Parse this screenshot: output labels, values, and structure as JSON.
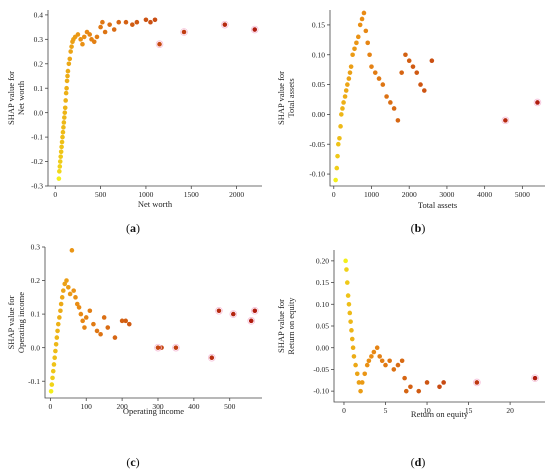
{
  "chart_data": [
    {
      "panel": "(a)",
      "type": "scatter",
      "xlabel": "Net worth",
      "ylabel_lines": [
        "SHAP value for",
        "Net worth"
      ],
      "xlim": [
        -80,
        2280
      ],
      "ylim": [
        -0.3,
        0.42
      ],
      "xticks": [
        0,
        500,
        1000,
        1500,
        2000
      ],
      "yticks": [
        -0.3,
        -0.2,
        -0.1,
        0.0,
        0.1,
        0.2,
        0.3,
        0.4
      ],
      "ytick_labels": [
        "-0.3",
        "-0.2",
        "-0.1",
        "0.0",
        "0.1",
        "0.2",
        "0.3",
        "0.4"
      ],
      "color_scale": {
        "low": "#f3ef1a",
        "mid": "#e98b14",
        "high": "#b01c10"
      },
      "points": [
        [
          40,
          -0.27
        ],
        [
          45,
          -0.24
        ],
        [
          50,
          -0.22
        ],
        [
          55,
          -0.2
        ],
        [
          60,
          -0.18
        ],
        [
          65,
          -0.16
        ],
        [
          70,
          -0.14
        ],
        [
          75,
          -0.12
        ],
        [
          80,
          -0.1
        ],
        [
          85,
          -0.08
        ],
        [
          90,
          -0.06
        ],
        [
          95,
          -0.04
        ],
        [
          100,
          -0.02
        ],
        [
          105,
          0.0
        ],
        [
          110,
          0.02
        ],
        [
          115,
          0.05
        ],
        [
          120,
          0.08
        ],
        [
          125,
          0.1
        ],
        [
          130,
          0.13
        ],
        [
          135,
          0.15
        ],
        [
          140,
          0.17
        ],
        [
          150,
          0.2
        ],
        [
          160,
          0.22
        ],
        [
          170,
          0.25
        ],
        [
          180,
          0.27
        ],
        [
          190,
          0.29
        ],
        [
          200,
          0.3
        ],
        [
          220,
          0.31
        ],
        [
          250,
          0.32
        ],
        [
          280,
          0.3
        ],
        [
          300,
          0.28
        ],
        [
          320,
          0.31
        ],
        [
          350,
          0.33
        ],
        [
          380,
          0.32
        ],
        [
          400,
          0.3
        ],
        [
          430,
          0.29
        ],
        [
          460,
          0.31
        ],
        [
          500,
          0.35
        ],
        [
          520,
          0.37
        ],
        [
          550,
          0.33
        ],
        [
          600,
          0.36
        ],
        [
          650,
          0.34
        ],
        [
          700,
          0.37
        ],
        [
          780,
          0.37
        ],
        [
          850,
          0.36
        ],
        [
          900,
          0.37
        ],
        [
          1000,
          0.38
        ],
        [
          1050,
          0.37
        ],
        [
          1100,
          0.38
        ],
        [
          1150,
          0.28
        ],
        [
          1420,
          0.33
        ],
        [
          1870,
          0.36
        ],
        [
          2200,
          0.34
        ]
      ],
      "annotations": [
        [
          1150,
          0.28
        ],
        [
          1420,
          0.33
        ],
        [
          1870,
          0.36
        ],
        [
          2200,
          0.34
        ]
      ]
    },
    {
      "panel": "(b)",
      "type": "scatter",
      "xlabel": "Total assets",
      "ylabel_lines": [
        "SHAP value for",
        "Total assets"
      ],
      "xlim": [
        -100,
        5600
      ],
      "ylim": [
        -0.12,
        0.175
      ],
      "xticks": [
        0,
        1000,
        2000,
        3000,
        4000,
        5000
      ],
      "yticks": [
        -0.1,
        -0.05,
        0.0,
        0.05,
        0.1,
        0.15
      ],
      "ytick_labels": [
        "-0.10",
        "-0.05",
        "0.00",
        "0.05",
        "0.10",
        "0.15"
      ],
      "color_scale": {
        "low": "#f3ef1a",
        "mid": "#e98b14",
        "high": "#b01c10"
      },
      "points": [
        [
          50,
          -0.11
        ],
        [
          80,
          -0.09
        ],
        [
          100,
          -0.07
        ],
        [
          120,
          -0.05
        ],
        [
          150,
          -0.04
        ],
        [
          180,
          -0.02
        ],
        [
          200,
          0.0
        ],
        [
          230,
          0.01
        ],
        [
          260,
          0.02
        ],
        [
          300,
          0.03
        ],
        [
          330,
          0.04
        ],
        [
          360,
          0.05
        ],
        [
          400,
          0.06
        ],
        [
          430,
          0.07
        ],
        [
          460,
          0.08
        ],
        [
          500,
          0.1
        ],
        [
          550,
          0.11
        ],
        [
          600,
          0.12
        ],
        [
          650,
          0.13
        ],
        [
          700,
          0.15
        ],
        [
          750,
          0.16
        ],
        [
          800,
          0.17
        ],
        [
          850,
          0.14
        ],
        [
          900,
          0.12
        ],
        [
          950,
          0.1
        ],
        [
          1000,
          0.08
        ],
        [
          1100,
          0.07
        ],
        [
          1200,
          0.06
        ],
        [
          1300,
          0.05
        ],
        [
          1400,
          0.03
        ],
        [
          1500,
          0.02
        ],
        [
          1600,
          0.01
        ],
        [
          1700,
          -0.01
        ],
        [
          1800,
          0.07
        ],
        [
          1900,
          0.1
        ],
        [
          2000,
          0.09
        ],
        [
          2100,
          0.08
        ],
        [
          2200,
          0.07
        ],
        [
          2300,
          0.05
        ],
        [
          2400,
          0.04
        ],
        [
          2600,
          0.09
        ],
        [
          4550,
          -0.01
        ],
        [
          5400,
          0.02
        ]
      ],
      "annotations": [
        [
          4550,
          -0.01
        ],
        [
          5400,
          0.02
        ]
      ]
    },
    {
      "panel": "(c)",
      "type": "scatter",
      "xlabel": "Operating income",
      "ylabel_lines": [
        "SHAP value for",
        "Operating income"
      ],
      "xlim": [
        -15,
        590
      ],
      "ylim": [
        -0.15,
        0.3
      ],
      "xticks": [
        0,
        100,
        200,
        300,
        400,
        500
      ],
      "yticks": [
        -0.1,
        0.0,
        0.1,
        0.2,
        0.3
      ],
      "ytick_labels": [
        "-0.1",
        "0.0",
        "0.1",
        "0.2",
        "0.3"
      ],
      "color_scale": {
        "low": "#f3ef1a",
        "mid": "#e98b14",
        "high": "#b01c10"
      },
      "points": [
        [
          2,
          -0.13
        ],
        [
          4,
          -0.11
        ],
        [
          6,
          -0.09
        ],
        [
          8,
          -0.07
        ],
        [
          10,
          -0.05
        ],
        [
          12,
          -0.03
        ],
        [
          14,
          -0.01
        ],
        [
          16,
          0.01
        ],
        [
          18,
          0.03
        ],
        [
          20,
          0.05
        ],
        [
          22,
          0.07
        ],
        [
          25,
          0.09
        ],
        [
          28,
          0.11
        ],
        [
          30,
          0.13
        ],
        [
          33,
          0.15
        ],
        [
          36,
          0.17
        ],
        [
          40,
          0.19
        ],
        [
          45,
          0.2
        ],
        [
          50,
          0.18
        ],
        [
          55,
          0.16
        ],
        [
          60,
          0.29
        ],
        [
          65,
          0.17
        ],
        [
          70,
          0.15
        ],
        [
          75,
          0.13
        ],
        [
          80,
          0.12
        ],
        [
          85,
          0.1
        ],
        [
          90,
          0.08
        ],
        [
          95,
          0.06
        ],
        [
          100,
          0.09
        ],
        [
          110,
          0.11
        ],
        [
          120,
          0.07
        ],
        [
          130,
          0.05
        ],
        [
          140,
          0.04
        ],
        [
          150,
          0.09
        ],
        [
          160,
          0.06
        ],
        [
          180,
          0.03
        ],
        [
          200,
          0.08
        ],
        [
          210,
          0.08
        ],
        [
          220,
          0.07
        ],
        [
          300,
          0.0
        ],
        [
          310,
          0.0
        ],
        [
          350,
          0.0
        ],
        [
          450,
          -0.03
        ],
        [
          470,
          0.11
        ],
        [
          510,
          0.1
        ],
        [
          560,
          0.08
        ],
        [
          570,
          0.11
        ]
      ],
      "annotations": [
        [
          300,
          0.0
        ],
        [
          350,
          0.0
        ],
        [
          450,
          -0.03
        ],
        [
          470,
          0.11
        ],
        [
          510,
          0.1
        ],
        [
          560,
          0.08
        ],
        [
          570,
          0.11
        ]
      ]
    },
    {
      "panel": "(d)",
      "type": "scatter",
      "xlabel": "Return on equity",
      "ylabel_lines": [
        "SHAP value for",
        "Return on equity"
      ],
      "xlim": [
        -1.2,
        24.2
      ],
      "ylim": [
        -0.125,
        0.225
      ],
      "xticks": [
        0,
        5,
        10,
        15,
        20
      ],
      "yticks": [
        -0.1,
        -0.05,
        0.0,
        0.05,
        0.1,
        0.15,
        0.2
      ],
      "ytick_labels": [
        "-0.10",
        "-0.05",
        "0.00",
        "0.05",
        "0.10",
        "0.15",
        "0.20"
      ],
      "color_scale": {
        "low": "#f3ef1a",
        "mid": "#e98b14",
        "high": "#b01c10"
      },
      "points": [
        [
          0.2,
          0.2
        ],
        [
          0.3,
          0.18
        ],
        [
          0.4,
          0.15
        ],
        [
          0.5,
          0.12
        ],
        [
          0.6,
          0.1
        ],
        [
          0.7,
          0.08
        ],
        [
          0.8,
          0.06
        ],
        [
          0.9,
          0.04
        ],
        [
          1.0,
          0.02
        ],
        [
          1.1,
          0.0
        ],
        [
          1.2,
          -0.02
        ],
        [
          1.4,
          -0.04
        ],
        [
          1.6,
          -0.06
        ],
        [
          1.8,
          -0.08
        ],
        [
          2.0,
          -0.1
        ],
        [
          2.2,
          -0.08
        ],
        [
          2.5,
          -0.06
        ],
        [
          2.8,
          -0.04
        ],
        [
          3.0,
          -0.03
        ],
        [
          3.3,
          -0.02
        ],
        [
          3.6,
          -0.01
        ],
        [
          4.0,
          0.0
        ],
        [
          4.3,
          -0.02
        ],
        [
          4.6,
          -0.03
        ],
        [
          5.0,
          -0.04
        ],
        [
          5.5,
          -0.03
        ],
        [
          6.0,
          -0.05
        ],
        [
          6.5,
          -0.04
        ],
        [
          7.0,
          -0.03
        ],
        [
          7.3,
          -0.07
        ],
        [
          7.5,
          -0.1
        ],
        [
          8.0,
          -0.09
        ],
        [
          9.0,
          -0.1
        ],
        [
          10.0,
          -0.08
        ],
        [
          11.5,
          -0.09
        ],
        [
          12.0,
          -0.08
        ],
        [
          16.0,
          -0.08
        ],
        [
          23.0,
          -0.07
        ]
      ],
      "annotations": [
        [
          16.0,
          -0.08
        ],
        [
          23.0,
          -0.07
        ]
      ]
    }
  ]
}
